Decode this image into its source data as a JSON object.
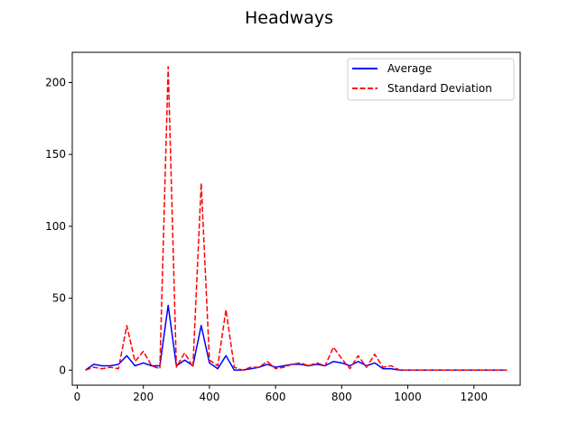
{
  "chart_data": {
    "type": "line",
    "title": "Headways",
    "xlabel": "",
    "ylabel": "",
    "xlim": [
      -15,
      1340
    ],
    "ylim": [
      -10.5,
      221
    ],
    "xticks": [
      0,
      200,
      400,
      600,
      800,
      1000,
      1200
    ],
    "yticks": [
      0,
      50,
      100,
      150,
      200
    ],
    "grid": false,
    "legend_position": "upper right",
    "series": [
      {
        "name": "Average",
        "color": "#0000ff",
        "style": "solid",
        "x": [
          25,
          50,
          75,
          100,
          125,
          150,
          175,
          200,
          225,
          250,
          275,
          300,
          325,
          350,
          375,
          400,
          425,
          450,
          475,
          500,
          525,
          550,
          575,
          600,
          625,
          650,
          675,
          700,
          725,
          750,
          775,
          800,
          825,
          850,
          875,
          900,
          925,
          950,
          975,
          1000,
          1025,
          1050,
          1075,
          1100,
          1125,
          1150,
          1175,
          1200,
          1225,
          1250,
          1275,
          1300
        ],
        "values": [
          0,
          4,
          3,
          3,
          4,
          10,
          3,
          5,
          3,
          3,
          45,
          3,
          7,
          3,
          31,
          5,
          1,
          10,
          0,
          0,
          1,
          2,
          4,
          2,
          3,
          4,
          4,
          3,
          4,
          3,
          6,
          5,
          3,
          6,
          3,
          5,
          1,
          1,
          0,
          0,
          0,
          0,
          0,
          0,
          0,
          0,
          0,
          0,
          0,
          0,
          0,
          0
        ]
      },
      {
        "name": "Standard Deviation",
        "color": "#ff0000",
        "style": "dashed",
        "x": [
          25,
          50,
          75,
          100,
          125,
          150,
          175,
          200,
          225,
          250,
          275,
          300,
          325,
          350,
          375,
          400,
          425,
          450,
          475,
          500,
          525,
          550,
          575,
          600,
          625,
          650,
          675,
          700,
          725,
          750,
          775,
          800,
          825,
          850,
          875,
          900,
          925,
          950,
          975,
          1000,
          1025,
          1050,
          1075,
          1100,
          1125,
          1150,
          1175,
          1200,
          1225,
          1250,
          1275,
          1300
        ],
        "values": [
          0,
          2,
          1,
          2,
          1,
          31,
          6,
          13,
          3,
          1,
          211,
          2,
          12,
          2,
          130,
          7,
          3,
          42,
          2,
          0,
          2,
          2,
          6,
          1,
          2,
          4,
          5,
          3,
          5,
          3,
          16,
          8,
          1,
          10,
          2,
          11,
          2,
          3,
          0,
          0,
          0,
          0,
          0,
          0,
          0,
          0,
          0,
          0,
          0,
          0,
          0,
          0
        ]
      }
    ]
  }
}
